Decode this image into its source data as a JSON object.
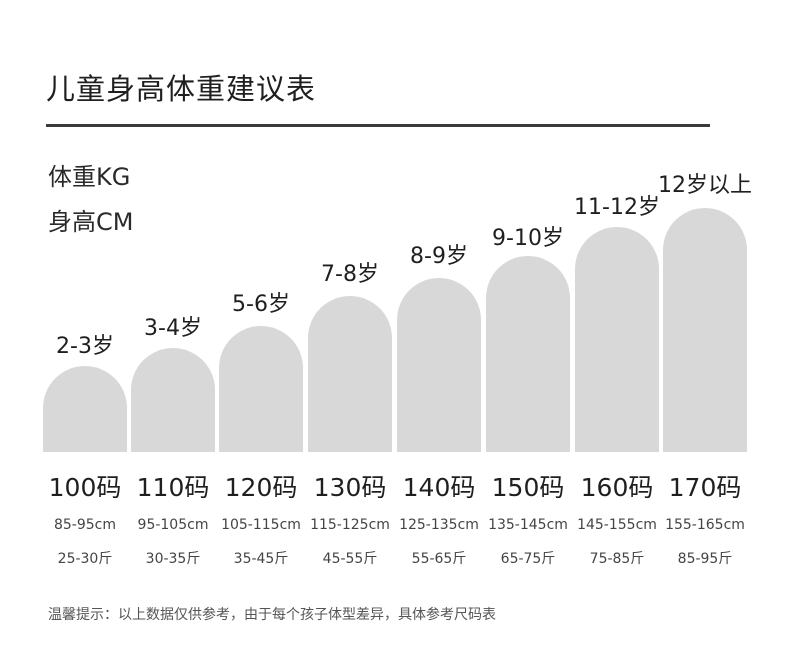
{
  "title": "儿童身高体重建议表",
  "legend": {
    "weight": "体重KG",
    "height": "身高CM"
  },
  "columns": [
    {
      "age": "2-3岁",
      "size": "100码",
      "height_range": "85-95cm",
      "weight_range": "25-30斤"
    },
    {
      "age": "3-4岁",
      "size": "110码",
      "height_range": "95-105cm",
      "weight_range": "30-35斤"
    },
    {
      "age": "5-6岁",
      "size": "120码",
      "height_range": "105-115cm",
      "weight_range": "35-45斤"
    },
    {
      "age": "7-8岁",
      "size": "130码",
      "height_range": "115-125cm",
      "weight_range": "45-55斤"
    },
    {
      "age": "8-9岁",
      "size": "140码",
      "height_range": "125-135cm",
      "weight_range": "55-65斤"
    },
    {
      "age": "9-10岁",
      "size": "150码",
      "height_range": "135-145cm",
      "weight_range": "65-75斤"
    },
    {
      "age": "11-12岁",
      "size": "160码",
      "height_range": "145-155cm",
      "weight_range": "75-85斤"
    },
    {
      "age": "12岁以上",
      "size": "170码",
      "height_range": "155-165cm",
      "weight_range": "85-95斤"
    }
  ],
  "note": "温馨提示：以上数据仅供参考，由于每个孩子体型差异，具体参考尺码表",
  "colors": {
    "bar": "#d8d8d8",
    "divider": "#3a3a3a"
  }
}
